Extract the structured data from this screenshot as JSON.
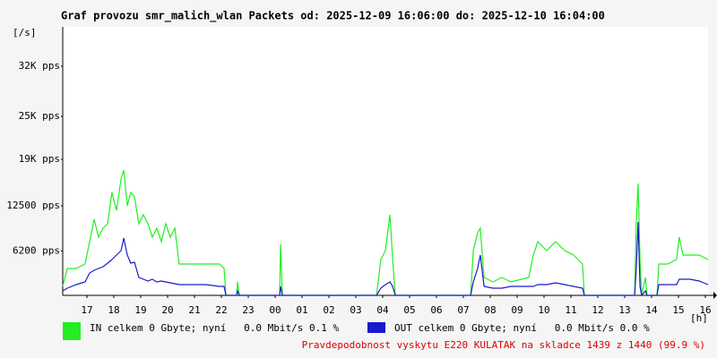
{
  "chart_data": {
    "type": "line",
    "title": "Graf provozu smr_malich_wlan Packets od: 2025-12-09 16:06:00 do: 2025-12-10 16:04:00",
    "y_label": "[/s]",
    "x_label": "[h]",
    "note": "Pravdepodobnost vyskytu E220 KULATAK na skladce 1439 z 1440 (99.9 %)",
    "xlim": [
      16.1,
      40.1
    ],
    "xticks": [
      17,
      18,
      19,
      20,
      21,
      22,
      23,
      {
        "value": 24,
        "label": "00"
      },
      {
        "value": 25,
        "label": "01"
      },
      {
        "value": 26,
        "label": "02"
      },
      {
        "value": 27,
        "label": "03"
      },
      {
        "value": 28,
        "label": "04"
      },
      {
        "value": 29,
        "label": "05"
      },
      {
        "value": 30,
        "label": "06"
      },
      {
        "value": 31,
        "label": "07"
      },
      {
        "value": 32,
        "label": "08"
      },
      {
        "value": 33,
        "label": "09"
      },
      {
        "value": 34,
        "label": "10"
      },
      {
        "value": 35,
        "label": "11"
      },
      {
        "value": 36,
        "label": "12"
      },
      {
        "value": 37,
        "label": "13"
      },
      {
        "value": 38,
        "label": "14"
      },
      {
        "value": 39,
        "label": "15"
      },
      {
        "value": 40,
        "label": "16"
      }
    ],
    "ylim": [
      0,
      37500
    ],
    "yticks": [
      {
        "value": 6200,
        "label": "6200 pps"
      },
      {
        "value": 12500,
        "label": "12500 pps"
      },
      {
        "value": 19000,
        "label": "19K pps"
      },
      {
        "value": 25000,
        "label": "25K pps"
      },
      {
        "value": 32000,
        "label": "32K pps"
      }
    ],
    "grid": false,
    "x": [
      16.1,
      16.27,
      16.6,
      16.93,
      17.1,
      17.27,
      17.43,
      17.6,
      17.77,
      17.93,
      18.1,
      18.27,
      18.37,
      18.5,
      18.63,
      18.77,
      18.93,
      19.1,
      19.27,
      19.43,
      19.6,
      19.77,
      19.93,
      20.1,
      20.27,
      20.43,
      20.77,
      21.1,
      21.43,
      21.93,
      22.1,
      22.17,
      22.57,
      22.6,
      22.67,
      24.17,
      24.2,
      24.27,
      27.77,
      27.93,
      28.1,
      28.27,
      28.37,
      28.47,
      31.27,
      31.37,
      31.53,
      31.63,
      31.77,
      32.1,
      32.43,
      32.77,
      33.43,
      33.6,
      33.77,
      34.1,
      34.43,
      34.77,
      35.1,
      35.43,
      35.5,
      37.37,
      37.43,
      37.5,
      37.57,
      37.63,
      37.77,
      37.83,
      38.2,
      38.27,
      38.6,
      38.93,
      39.03,
      39.17,
      39.43,
      39.77,
      40.1
    ],
    "series": [
      {
        "name": "IN celkem 0 Gbyte; nyní   0.0 Mbit/s 0.1 %",
        "color": "#22ee22",
        "values": [
          1250,
          3750,
          3750,
          4375,
          7500,
          10625,
          8125,
          9375,
          10000,
          14375,
          11875,
          16250,
          17500,
          12500,
          14375,
          13750,
          10000,
          11250,
          10000,
          8125,
          9375,
          7500,
          10000,
          8125,
          9375,
          4375,
          4375,
          4375,
          4375,
          4375,
          3750,
          0,
          0,
          1875,
          0,
          0,
          7125,
          0,
          0,
          5000,
          6250,
          11250,
          5000,
          0,
          0,
          6250,
          8750,
          9375,
          2500,
          1875,
          2500,
          1875,
          2500,
          5625,
          7500,
          6250,
          7500,
          6250,
          5625,
          4375,
          0,
          0,
          10000,
          15625,
          5000,
          0,
          2500,
          0,
          0,
          4375,
          4375,
          5000,
          8125,
          5625,
          5625,
          5625,
          5000
        ]
      },
      {
        "name": "OUT celkem 0 Gbyte; nyní   0.0 Mbit/s 0.0 %",
        "color": "#1a1acc",
        "values": [
          625,
          1000,
          1500,
          1875,
          3125,
          3500,
          3750,
          4000,
          4500,
          5000,
          5625,
          6250,
          8000,
          5625,
          4500,
          4625,
          2500,
          2250,
          2000,
          2250,
          1875,
          2000,
          1875,
          1750,
          1625,
          1500,
          1500,
          1500,
          1500,
          1250,
          1250,
          0,
          0,
          625,
          0,
          0,
          1250,
          0,
          0,
          1000,
          1500,
          1875,
          1250,
          0,
          0,
          1875,
          3750,
          5625,
          1250,
          1000,
          1000,
          1250,
          1250,
          1250,
          1500,
          1500,
          1750,
          1500,
          1250,
          1000,
          0,
          0,
          3750,
          10250,
          1250,
          0,
          625,
          0,
          0,
          1500,
          1500,
          1500,
          2250,
          2250,
          2250,
          2000,
          1500
        ]
      }
    ]
  }
}
